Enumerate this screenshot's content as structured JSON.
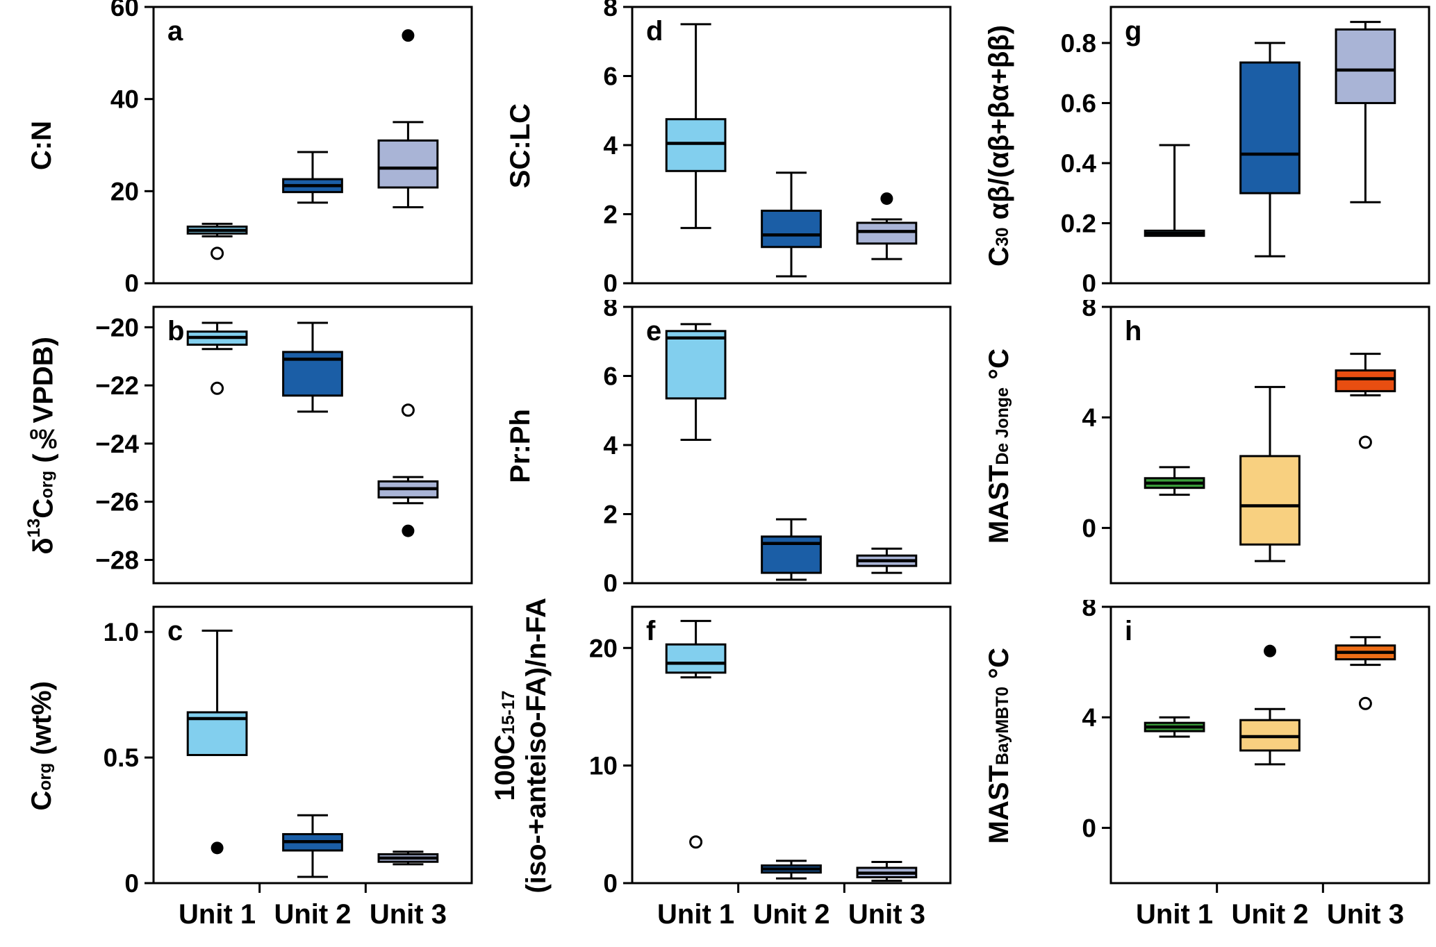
{
  "figure": {
    "background": "#ffffff",
    "frame_color": "#000000"
  },
  "x_categories": [
    "Unit 1",
    "Unit 2",
    "Unit 3"
  ],
  "palette": {
    "unit1_blue": "#82CFEE",
    "unit2_blue": "#1B5EA6",
    "unit3_slate": "#A9B4D6",
    "green": "#3CA03C",
    "tan": "#F8D080",
    "red_orange": "#E84E11",
    "orange": "#ED6D16"
  },
  "chart_data": [
    {
      "type": "box",
      "panel_label": "a",
      "ylabel_lines": [
        "C:N"
      ],
      "ylim": [
        0,
        60
      ],
      "yticks": [
        {
          "v": 0,
          "t": "0"
        },
        {
          "v": 20,
          "t": "20"
        },
        {
          "v": 40,
          "t": "40"
        },
        {
          "v": 60,
          "t": "60"
        }
      ],
      "show_x_labels": false,
      "boxes": [
        {
          "category": "Unit 1",
          "color": "#82CFEE",
          "q1": 10.8,
          "median": 11.5,
          "q3": 12.3,
          "lo": 10.2,
          "hi": 12.9,
          "outliers_open": [
            6.5
          ],
          "outliers_filled": []
        },
        {
          "category": "Unit 2",
          "color": "#1B5EA6",
          "q1": 19.8,
          "median": 21.2,
          "q3": 22.6,
          "lo": 17.5,
          "hi": 28.5,
          "outliers_open": [],
          "outliers_filled": []
        },
        {
          "category": "Unit 3",
          "color": "#A9B4D6",
          "q1": 20.8,
          "median": 25.0,
          "q3": 31.0,
          "lo": 16.5,
          "hi": 35.0,
          "outliers_open": [],
          "outliers_filled": [
            53.8
          ]
        }
      ]
    },
    {
      "type": "box",
      "panel_label": "b",
      "ylabel_lines": [
        "δ^13^C~org~ (‰VPDB)"
      ],
      "ylim": [
        -28.8,
        -19.3
      ],
      "yticks": [
        {
          "v": -28,
          "t": "−28"
        },
        {
          "v": -26,
          "t": "−26"
        },
        {
          "v": -24,
          "t": "−24"
        },
        {
          "v": -22,
          "t": "−22"
        },
        {
          "v": -20,
          "t": "−20"
        }
      ],
      "show_x_labels": false,
      "boxes": [
        {
          "category": "Unit 1",
          "color": "#82CFEE",
          "q1": -20.6,
          "median": -20.35,
          "q3": -20.15,
          "lo": -20.75,
          "hi": -19.85,
          "outliers_open": [
            -22.1
          ],
          "outliers_filled": []
        },
        {
          "category": "Unit 2",
          "color": "#1B5EA6",
          "q1": -22.35,
          "median": -21.1,
          "q3": -20.85,
          "lo": -22.9,
          "hi": -19.85,
          "outliers_open": [],
          "outliers_filled": []
        },
        {
          "category": "Unit 3",
          "color": "#A9B4D6",
          "q1": -25.85,
          "median": -25.55,
          "q3": -25.3,
          "lo": -26.05,
          "hi": -25.15,
          "outliers_open": [
            -22.85
          ],
          "outliers_filled": [
            -27.0
          ]
        }
      ]
    },
    {
      "type": "box",
      "panel_label": "c",
      "ylabel_lines": [
        "C~org~ (wt%)"
      ],
      "ylim": [
        0,
        1.1
      ],
      "yticks": [
        {
          "v": 0,
          "t": "0"
        },
        {
          "v": 0.5,
          "t": "0.5"
        },
        {
          "v": 1.0,
          "t": "1.0"
        }
      ],
      "show_x_labels": true,
      "boxes": [
        {
          "category": "Unit 1",
          "color": "#82CFEE",
          "q1": 0.51,
          "median": 0.655,
          "q3": 0.68,
          "lo": 0.51,
          "hi": 1.005,
          "outliers_open": [],
          "outliers_filled": [
            0.14
          ]
        },
        {
          "category": "Unit 2",
          "color": "#1B5EA6",
          "q1": 0.13,
          "median": 0.165,
          "q3": 0.195,
          "lo": 0.025,
          "hi": 0.27,
          "outliers_open": [],
          "outliers_filled": []
        },
        {
          "category": "Unit 3",
          "color": "#A9B4D6",
          "q1": 0.085,
          "median": 0.1,
          "q3": 0.115,
          "lo": 0.075,
          "hi": 0.125,
          "outliers_open": [],
          "outliers_filled": []
        }
      ]
    },
    {
      "type": "box",
      "panel_label": "d",
      "ylabel_lines": [
        "SC:LC"
      ],
      "ylim": [
        0,
        8
      ],
      "yticks": [
        {
          "v": 0,
          "t": "0"
        },
        {
          "v": 2,
          "t": "2"
        },
        {
          "v": 4,
          "t": "4"
        },
        {
          "v": 6,
          "t": "6"
        },
        {
          "v": 8,
          "t": "8"
        }
      ],
      "show_x_labels": false,
      "boxes": [
        {
          "category": "Unit 1",
          "color": "#82CFEE",
          "q1": 3.25,
          "median": 4.05,
          "q3": 4.75,
          "lo": 1.6,
          "hi": 7.5,
          "outliers_open": [],
          "outliers_filled": []
        },
        {
          "category": "Unit 2",
          "color": "#1B5EA6",
          "q1": 1.05,
          "median": 1.4,
          "q3": 2.1,
          "lo": 0.2,
          "hi": 3.2,
          "outliers_open": [],
          "outliers_filled": []
        },
        {
          "category": "Unit 3",
          "color": "#A9B4D6",
          "q1": 1.15,
          "median": 1.5,
          "q3": 1.75,
          "lo": 0.7,
          "hi": 1.85,
          "outliers_open": [],
          "outliers_filled": [
            2.45
          ]
        }
      ]
    },
    {
      "type": "box",
      "panel_label": "e",
      "ylabel_lines": [
        "Pr:Ph"
      ],
      "ylim": [
        0,
        8
      ],
      "yticks": [
        {
          "v": 0,
          "t": "0"
        },
        {
          "v": 2,
          "t": "2"
        },
        {
          "v": 4,
          "t": "4"
        },
        {
          "v": 6,
          "t": "6"
        },
        {
          "v": 8,
          "t": "8"
        }
      ],
      "show_x_labels": false,
      "boxes": [
        {
          "category": "Unit 1",
          "color": "#82CFEE",
          "q1": 5.35,
          "median": 7.1,
          "q3": 7.3,
          "lo": 4.15,
          "hi": 7.5,
          "outliers_open": [],
          "outliers_filled": []
        },
        {
          "category": "Unit 2",
          "color": "#1B5EA6",
          "q1": 0.3,
          "median": 1.15,
          "q3": 1.35,
          "lo": 0.1,
          "hi": 1.85,
          "outliers_open": [],
          "outliers_filled": []
        },
        {
          "category": "Unit 3",
          "color": "#A9B4D6",
          "q1": 0.5,
          "median": 0.65,
          "q3": 0.8,
          "lo": 0.3,
          "hi": 1.0,
          "outliers_open": [],
          "outliers_filled": []
        }
      ]
    },
    {
      "type": "box",
      "panel_label": "f",
      "ylabel_lines": [
        "100C~15-17~",
        "(iso-+anteiso-FA)/n-FA"
      ],
      "ylim": [
        0,
        23.5
      ],
      "yticks": [
        {
          "v": 0,
          "t": "0"
        },
        {
          "v": 10,
          "t": "10"
        },
        {
          "v": 20,
          "t": "20"
        }
      ],
      "show_x_labels": true,
      "boxes": [
        {
          "category": "Unit 1",
          "color": "#82CFEE",
          "q1": 17.9,
          "median": 18.7,
          "q3": 20.3,
          "lo": 17.5,
          "hi": 22.3,
          "outliers_open": [
            3.5
          ],
          "outliers_filled": []
        },
        {
          "category": "Unit 2",
          "color": "#1B5EA6",
          "q1": 0.9,
          "median": 1.2,
          "q3": 1.5,
          "lo": 0.4,
          "hi": 1.9,
          "outliers_open": [],
          "outliers_filled": []
        },
        {
          "category": "Unit 3",
          "color": "#A9B4D6",
          "q1": 0.5,
          "median": 0.85,
          "q3": 1.3,
          "lo": 0.2,
          "hi": 1.8,
          "outliers_open": [],
          "outliers_filled": []
        }
      ]
    },
    {
      "type": "box",
      "panel_label": "g",
      "ylabel_lines": [
        "C~30~ αβ/(αβ+βα+ββ)"
      ],
      "ylim": [
        0,
        0.92
      ],
      "yticks": [
        {
          "v": 0,
          "t": "0"
        },
        {
          "v": 0.2,
          "t": "0.2"
        },
        {
          "v": 0.4,
          "t": "0.4"
        },
        {
          "v": 0.6,
          "t": "0.6"
        },
        {
          "v": 0.8,
          "t": "0.8"
        }
      ],
      "show_x_labels": false,
      "boxes": [
        {
          "category": "Unit 1",
          "color": "#82CFEE",
          "q1": 0.158,
          "median": 0.166,
          "q3": 0.175,
          "lo": 0.158,
          "hi": 0.46,
          "outliers_open": [],
          "outliers_filled": []
        },
        {
          "category": "Unit 2",
          "color": "#1B5EA6",
          "q1": 0.3,
          "median": 0.43,
          "q3": 0.735,
          "lo": 0.09,
          "hi": 0.8,
          "outliers_open": [],
          "outliers_filled": []
        },
        {
          "category": "Unit 3",
          "color": "#A9B4D6",
          "q1": 0.6,
          "median": 0.71,
          "q3": 0.845,
          "lo": 0.27,
          "hi": 0.87,
          "outliers_open": [],
          "outliers_filled": []
        }
      ]
    },
    {
      "type": "box",
      "panel_label": "h",
      "ylabel_lines": [
        "MAST~De Jonge~ °C"
      ],
      "ylim": [
        -2,
        8
      ],
      "yticks": [
        {
          "v": 0,
          "t": "0"
        },
        {
          "v": 4,
          "t": "4"
        },
        {
          "v": 8,
          "t": "8"
        }
      ],
      "show_x_labels": false,
      "boxes": [
        {
          "category": "Unit 1",
          "color": "#3CA03C",
          "q1": 1.45,
          "median": 1.62,
          "q3": 1.8,
          "lo": 1.2,
          "hi": 2.2,
          "outliers_open": [],
          "outliers_filled": []
        },
        {
          "category": "Unit 2",
          "color": "#F8D080",
          "q1": -0.6,
          "median": 0.8,
          "q3": 2.6,
          "lo": -1.2,
          "hi": 5.1,
          "outliers_open": [],
          "outliers_filled": []
        },
        {
          "category": "Unit 3",
          "color": "#E84E11",
          "q1": 4.95,
          "median": 5.4,
          "q3": 5.7,
          "lo": 4.8,
          "hi": 6.3,
          "outliers_open": [
            3.1
          ],
          "outliers_filled": []
        }
      ]
    },
    {
      "type": "box",
      "panel_label": "i",
      "ylabel_lines": [
        "MAST~BayMBT0~ °C"
      ],
      "ylim": [
        -2,
        8
      ],
      "yticks": [
        {
          "v": 0,
          "t": "0"
        },
        {
          "v": 4,
          "t": "4"
        },
        {
          "v": 8,
          "t": "8"
        }
      ],
      "show_x_labels": true,
      "boxes": [
        {
          "category": "Unit 1",
          "color": "#3CA03C",
          "q1": 3.5,
          "median": 3.65,
          "q3": 3.8,
          "lo": 3.3,
          "hi": 4.0,
          "outliers_open": [],
          "outliers_filled": []
        },
        {
          "category": "Unit 2",
          "color": "#F8D080",
          "q1": 2.8,
          "median": 3.3,
          "q3": 3.9,
          "lo": 2.3,
          "hi": 4.3,
          "outliers_open": [],
          "outliers_filled": [
            6.4
          ]
        },
        {
          "category": "Unit 3",
          "color": "#ED6D16",
          "q1": 6.1,
          "median": 6.35,
          "q3": 6.6,
          "lo": 5.9,
          "hi": 6.9,
          "outliers_open": [
            4.5
          ],
          "outliers_filled": []
        }
      ]
    }
  ]
}
